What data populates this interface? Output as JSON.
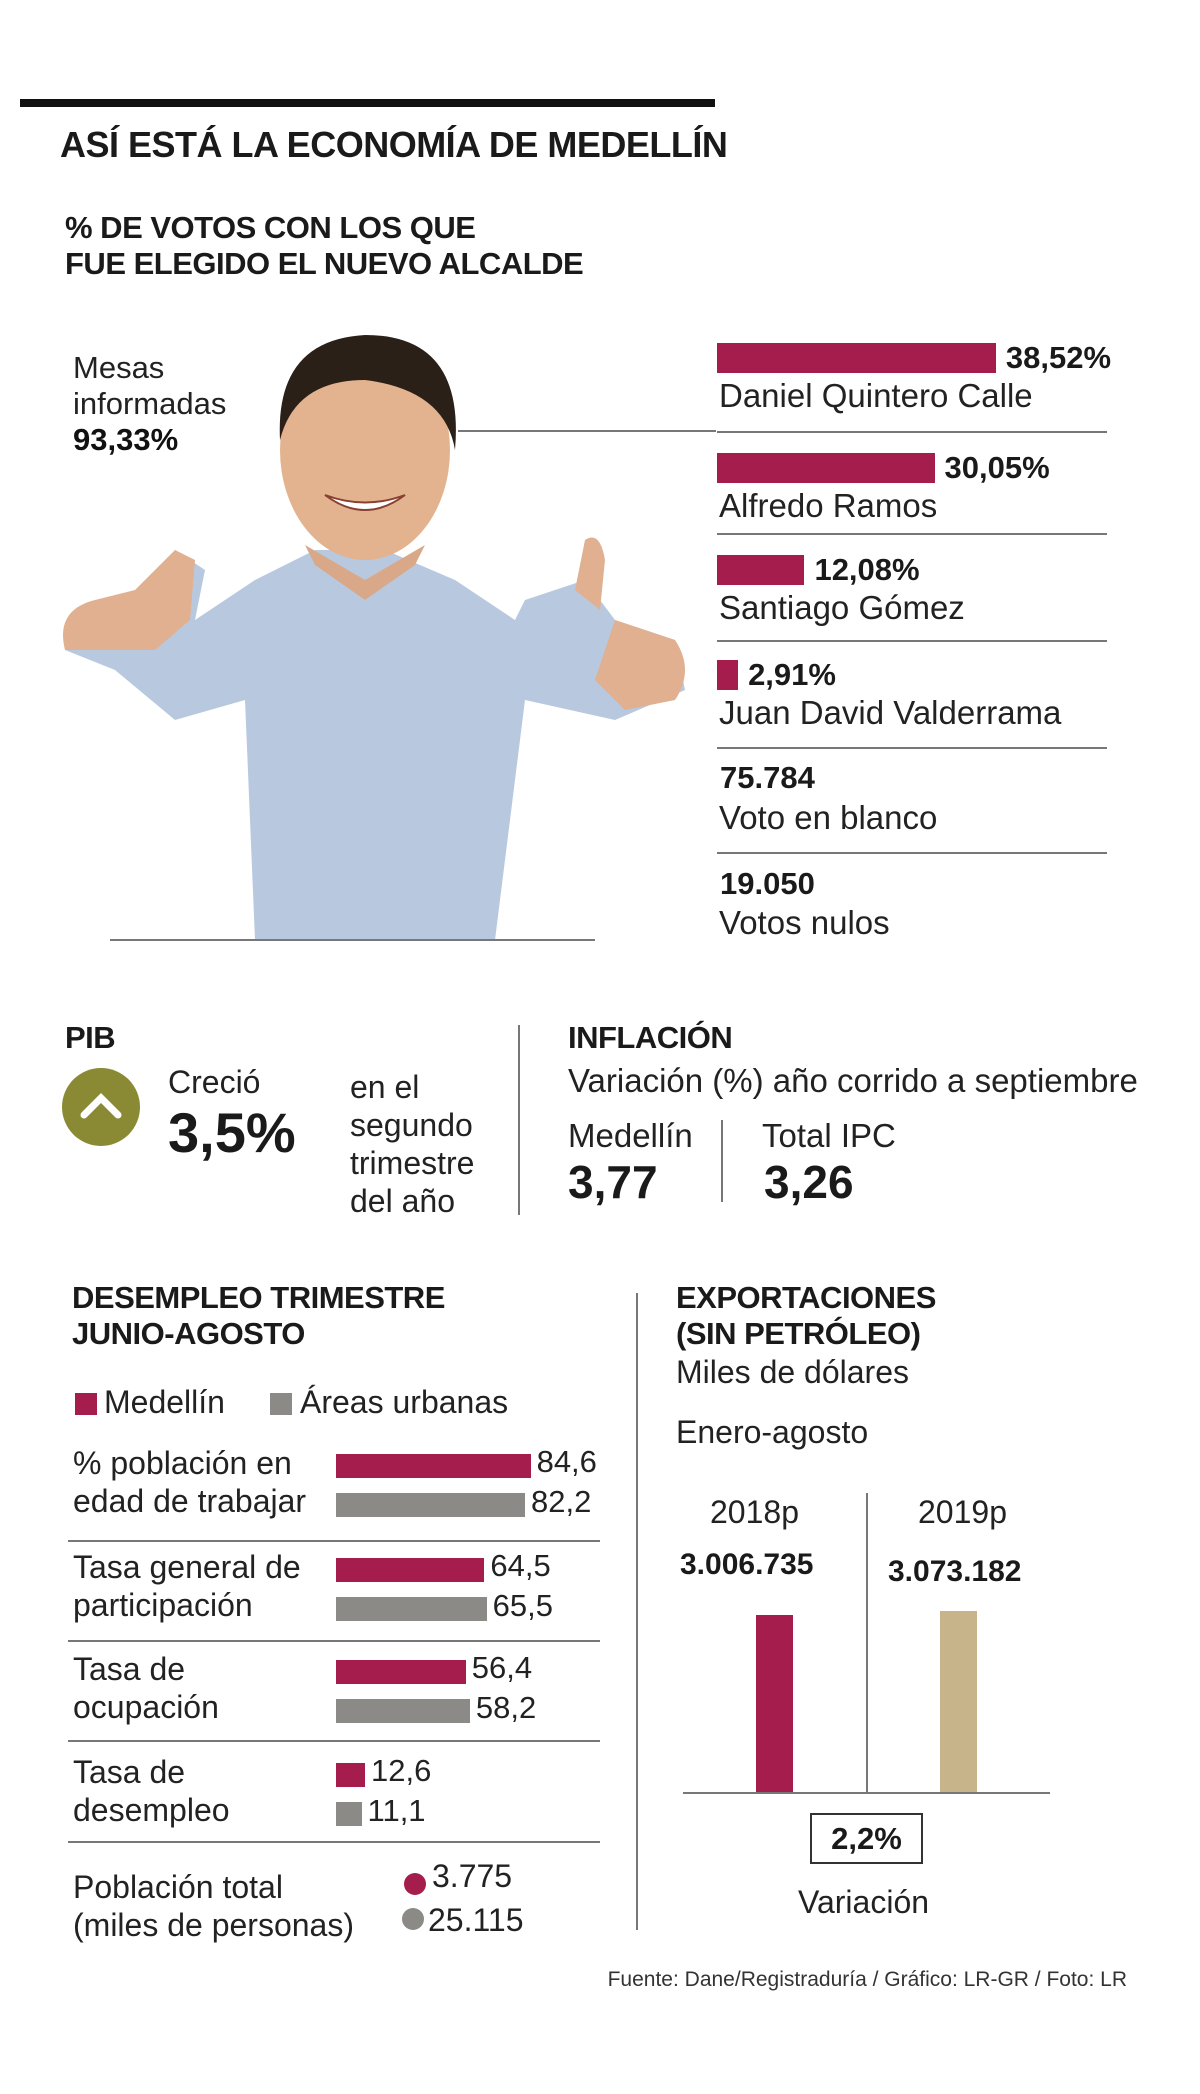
{
  "title": "ASÍ ESTÁ LA ECONOMÍA DE MEDELLÍN",
  "votes": {
    "title_line1": "% DE VOTOS CON LOS QUE",
    "title_line2": "FUE ELEGIDO EL NUEVO ALCALDE",
    "mesas_line1": "Mesas",
    "mesas_line2": "informadas",
    "mesas_value": "93,33%",
    "candidates": [
      {
        "name": "Daniel Quintero Calle",
        "label": "38,52%",
        "value": 38.52
      },
      {
        "name": "Alfredo Ramos",
        "label": "30,05%",
        "value": 30.05
      },
      {
        "name": "Santiago Gómez",
        "label": "12,08%",
        "value": 12.08
      },
      {
        "name": "Juan David Valderrama",
        "label": "2,91%",
        "value": 2.91
      }
    ],
    "blank": {
      "value": "75.784",
      "label": "Voto en blanco"
    },
    "null": {
      "value": "19.050",
      "label": "Votos nulos"
    }
  },
  "pib": {
    "title": "PIB",
    "icon": "chevron-up-icon",
    "verb": "Creció",
    "value": "3,5%",
    "desc": [
      "en el",
      "segundo",
      "trimestre",
      "del año"
    ]
  },
  "inflation": {
    "title": "INFLACIÓN",
    "subtitle": "Variación (%) año corrido a septiembre",
    "items": [
      {
        "label": "Medellín",
        "value": "3,77"
      },
      {
        "label": "Total IPC",
        "value": "3,26"
      }
    ]
  },
  "unemployment": {
    "title_line1": "DESEMPLEO TRIMESTRE",
    "title_line2": "JUNIO-AGOSTO",
    "legend": [
      "Medellín",
      "Áreas urbanas"
    ],
    "rows": [
      {
        "label": [
          "% población en",
          "edad de trabajar"
        ],
        "medellin": 84.6,
        "urban": 82.2,
        "medellin_label": "84,6",
        "urban_label": "82,2"
      },
      {
        "label": [
          "Tasa general de",
          "participación"
        ],
        "medellin": 64.5,
        "urban": 65.5,
        "medellin_label": "64,5",
        "urban_label": "65,5"
      },
      {
        "label": [
          "Tasa de",
          "ocupación"
        ],
        "medellin": 56.4,
        "urban": 58.2,
        "medellin_label": "56,4",
        "urban_label": "58,2"
      },
      {
        "label": [
          "Tasa de",
          "desempleo"
        ],
        "medellin": 12.6,
        "urban": 11.1,
        "medellin_label": "12,6",
        "urban_label": "11,1"
      }
    ],
    "population": {
      "label": [
        "Población total",
        "(miles de personas)"
      ],
      "medellin": "3.775",
      "urban": "25.115"
    }
  },
  "exports": {
    "title_line1": "EXPORTACIONES",
    "title_line2": "(SIN PETRÓLEO)",
    "unit": "Miles de dólares",
    "period": "Enero-agosto",
    "bars": [
      {
        "year": "2018p",
        "label": "3.006.735",
        "value": 3006735
      },
      {
        "year": "2019p",
        "label": "3.073.182",
        "value": 3073182
      }
    ],
    "variation_value": "2,2%",
    "variation_label": "Variación"
  },
  "colors": {
    "medellin": "#a51d4d",
    "urban": "#8c8a87",
    "y2019": "#c8b48a",
    "pib_icon": "#8a8a35"
  },
  "source": "Fuente: Dane/Registraduría / Gráfico: LR-GR / Foto: LR"
}
